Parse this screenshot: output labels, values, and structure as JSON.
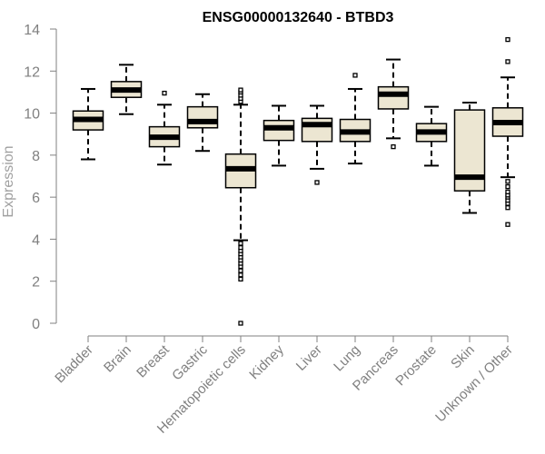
{
  "chart_data": {
    "type": "box",
    "title": "ENSG00000132640 - BTBD3",
    "xlabel": "",
    "ylabel": "Expression",
    "ylim": [
      0,
      14
    ],
    "yticks": [
      0,
      2,
      4,
      6,
      8,
      10,
      12,
      14
    ],
    "grid": false,
    "box_fill": "#ece6d2",
    "categories": [
      "Bladder",
      "Brain",
      "Breast",
      "Gastric",
      "Hematopoietic cells",
      "Kidney",
      "Liver",
      "Lung",
      "Pancreas",
      "Prostate",
      "Skin",
      "Unknown / Other"
    ],
    "boxes": [
      {
        "whisker_low": 7.8,
        "q1": 9.2,
        "median": 9.7,
        "q3": 10.1,
        "whisker_high": 11.15,
        "outliers": []
      },
      {
        "whisker_low": 9.95,
        "q1": 10.75,
        "median": 11.1,
        "q3": 11.5,
        "whisker_high": 12.3,
        "outliers": []
      },
      {
        "whisker_low": 7.55,
        "q1": 8.4,
        "median": 8.85,
        "q3": 9.35,
        "whisker_high": 10.4,
        "outliers": [
          10.95
        ]
      },
      {
        "whisker_low": 8.2,
        "q1": 9.3,
        "median": 9.6,
        "q3": 10.3,
        "whisker_high": 10.9,
        "outliers": []
      },
      {
        "whisker_low": 3.95,
        "q1": 6.45,
        "median": 7.35,
        "q3": 8.05,
        "whisker_high": 10.4,
        "outliers": [
          0.0,
          2.1,
          2.3,
          2.5,
          2.7,
          2.85,
          3.0,
          3.15,
          3.3,
          3.45,
          3.6,
          3.8,
          10.55,
          10.7,
          10.85,
          11.0,
          11.1
        ]
      },
      {
        "whisker_low": 7.5,
        "q1": 8.7,
        "median": 9.3,
        "q3": 9.65,
        "whisker_high": 10.35,
        "outliers": []
      },
      {
        "whisker_low": 7.35,
        "q1": 8.65,
        "median": 9.45,
        "q3": 9.75,
        "whisker_high": 10.35,
        "outliers": [
          6.7
        ]
      },
      {
        "whisker_low": 7.6,
        "q1": 8.65,
        "median": 9.1,
        "q3": 9.7,
        "whisker_high": 11.15,
        "outliers": [
          11.8
        ]
      },
      {
        "whisker_low": 8.8,
        "q1": 10.2,
        "median": 10.9,
        "q3": 11.25,
        "whisker_high": 12.55,
        "outliers": [
          8.4
        ]
      },
      {
        "whisker_low": 7.5,
        "q1": 8.65,
        "median": 9.1,
        "q3": 9.5,
        "whisker_high": 10.3,
        "outliers": []
      },
      {
        "whisker_low": 5.25,
        "q1": 6.3,
        "median": 6.95,
        "q3": 10.15,
        "whisker_high": 10.5,
        "outliers": []
      },
      {
        "whisker_low": 6.95,
        "q1": 8.9,
        "median": 9.55,
        "q3": 10.25,
        "whisker_high": 11.7,
        "outliers": [
          4.7,
          5.5,
          5.7,
          5.85,
          6.0,
          6.1,
          6.25,
          6.5,
          6.75,
          12.45,
          13.5
        ]
      }
    ]
  }
}
